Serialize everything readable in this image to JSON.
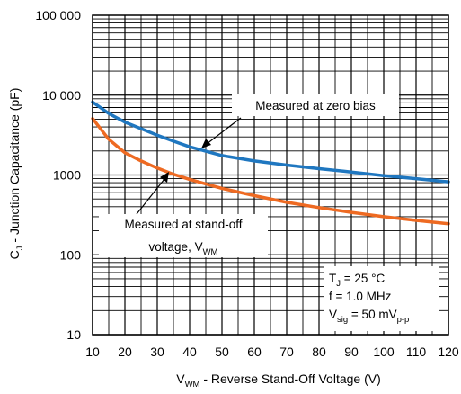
{
  "chart_data": {
    "type": "line",
    "title": "",
    "xlabel": {
      "main": "V",
      "sub": "WM",
      "rest": " - Reverse Stand-Off Voltage (V)"
    },
    "ylabel": {
      "main": "C",
      "sub": "J",
      "rest": " - Junction Capacitance (pF)"
    },
    "xlim": [
      10,
      120
    ],
    "ylim": [
      10,
      100000
    ],
    "yscale": "log",
    "grid": true,
    "x_ticks": [
      "10",
      "20",
      "30",
      "40",
      "50",
      "60",
      "70",
      "80",
      "90",
      "100",
      "110",
      "120"
    ],
    "y_ticks": [
      "10",
      "100",
      "1000",
      "10 000",
      "100 000"
    ],
    "series": [
      {
        "name": "Measured at zero bias",
        "color": "#1f77c0",
        "x": [
          10,
          15,
          20,
          25,
          30,
          35,
          40,
          50,
          60,
          70,
          80,
          90,
          100,
          110,
          120
        ],
        "y": [
          8200,
          5900,
          4600,
          3800,
          3150,
          2650,
          2250,
          1750,
          1500,
          1330,
          1200,
          1090,
          980,
          900,
          820
        ]
      },
      {
        "name": "Measured at stand-off voltage, V_WM",
        "color": "#ee6a22",
        "x": [
          10,
          15,
          20,
          25,
          30,
          35,
          40,
          50,
          60,
          70,
          80,
          90,
          100,
          110,
          120
        ],
        "y": [
          5100,
          2800,
          1900,
          1500,
          1220,
          1020,
          880,
          680,
          550,
          455,
          390,
          340,
          300,
          270,
          245
        ]
      }
    ],
    "annotations": [
      {
        "lines": [
          "Measured at zero bias"
        ]
      },
      {
        "lines": [
          "Measured at stand-off",
          "voltage, V"
        ],
        "sub": "WM"
      }
    ],
    "conditions": [
      {
        "main": "T",
        "sub": "J",
        "rest": " = 25 °C"
      },
      {
        "main": "f = 1.0 MHz",
        "sub": "",
        "rest": ""
      },
      {
        "main": "V",
        "sub": "sig",
        "rest": " = 50 mV",
        "sub2": "p-p"
      }
    ]
  }
}
